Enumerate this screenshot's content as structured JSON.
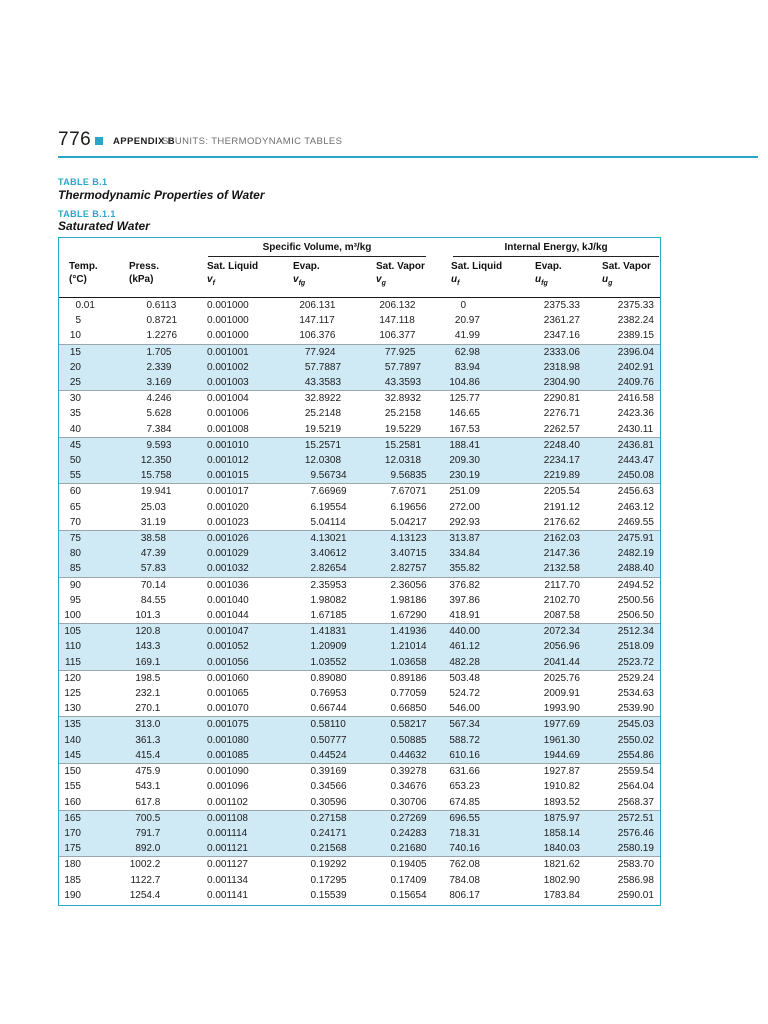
{
  "page_header": {
    "page_number": "776",
    "appendix_label": "APPENDIX B",
    "running_title": "SI UNITS: THERMODYNAMIC TABLES"
  },
  "titles": {
    "table_b1_label": "TABLE B.1",
    "table_b1_title": "Thermodynamic Properties of Water",
    "table_b11_label": "TABLE B.1.1",
    "table_b11_title": "Saturated Water"
  },
  "colors": {
    "accent": "#2aa6c9",
    "band": "#cfe9f5"
  },
  "table": {
    "groups": [
      {
        "label": "Specific Volume, m³/kg"
      },
      {
        "label": "Internal Energy, kJ/kg"
      }
    ],
    "columns": [
      {
        "key": "temp",
        "line1": "Temp.",
        "unit": "(°C)"
      },
      {
        "key": "press",
        "line1": "Press.",
        "unit": "(kPa)"
      },
      {
        "key": "vf",
        "line1": "Sat. Liquid",
        "sym": "v",
        "sub": "f"
      },
      {
        "key": "vfg",
        "line1": "Evap.",
        "sym": "v",
        "sub": "fg"
      },
      {
        "key": "vg",
        "line1": "Sat. Vapor",
        "sym": "v",
        "sub": "g"
      },
      {
        "key": "uf",
        "line1": "Sat. Liquid",
        "sym": "u",
        "sub": "f"
      },
      {
        "key": "ufg",
        "line1": "Evap.",
        "sym": "u",
        "sub": "fg"
      },
      {
        "key": "ug",
        "line1": "Sat. Vapor",
        "sym": "u",
        "sub": "g"
      }
    ],
    "rows": [
      [
        "0.01",
        "0.6113",
        "0.001000",
        "206.131",
        "206.132",
        "0",
        "2375.33",
        "2375.33"
      ],
      [
        "5",
        "0.8721",
        "0.001000",
        "147.117",
        "147.118",
        "20.97",
        "2361.27",
        "2382.24"
      ],
      [
        "10",
        "1.2276",
        "0.001000",
        "106.376",
        "106.377",
        "41.99",
        "2347.16",
        "2389.15"
      ],
      [
        "15",
        "1.705",
        "0.001001",
        "77.924",
        "77.925",
        "62.98",
        "2333.06",
        "2396.04"
      ],
      [
        "20",
        "2.339",
        "0.001002",
        "57.7887",
        "57.7897",
        "83.94",
        "2318.98",
        "2402.91"
      ],
      [
        "25",
        "3.169",
        "0.001003",
        "43.3583",
        "43.3593",
        "104.86",
        "2304.90",
        "2409.76"
      ],
      [
        "30",
        "4.246",
        "0.001004",
        "32.8922",
        "32.8932",
        "125.77",
        "2290.81",
        "2416.58"
      ],
      [
        "35",
        "5.628",
        "0.001006",
        "25.2148",
        "25.2158",
        "146.65",
        "2276.71",
        "2423.36"
      ],
      [
        "40",
        "7.384",
        "0.001008",
        "19.5219",
        "19.5229",
        "167.53",
        "2262.57",
        "2430.11"
      ],
      [
        "45",
        "9.593",
        "0.001010",
        "15.2571",
        "15.2581",
        "188.41",
        "2248.40",
        "2436.81"
      ],
      [
        "50",
        "12.350",
        "0.001012",
        "12.0308",
        "12.0318",
        "209.30",
        "2234.17",
        "2443.47"
      ],
      [
        "55",
        "15.758",
        "0.001015",
        "9.56734",
        "9.56835",
        "230.19",
        "2219.89",
        "2450.08"
      ],
      [
        "60",
        "19.941",
        "0.001017",
        "7.66969",
        "7.67071",
        "251.09",
        "2205.54",
        "2456.63"
      ],
      [
        "65",
        "25.03",
        "0.001020",
        "6.19554",
        "6.19656",
        "272.00",
        "2191.12",
        "2463.12"
      ],
      [
        "70",
        "31.19",
        "0.001023",
        "5.04114",
        "5.04217",
        "292.93",
        "2176.62",
        "2469.55"
      ],
      [
        "75",
        "38.58",
        "0.001026",
        "4.13021",
        "4.13123",
        "313.87",
        "2162.03",
        "2475.91"
      ],
      [
        "80",
        "47.39",
        "0.001029",
        "3.40612",
        "3.40715",
        "334.84",
        "2147.36",
        "2482.19"
      ],
      [
        "85",
        "57.83",
        "0.001032",
        "2.82654",
        "2.82757",
        "355.82",
        "2132.58",
        "2488.40"
      ],
      [
        "90",
        "70.14",
        "0.001036",
        "2.35953",
        "2.36056",
        "376.82",
        "2117.70",
        "2494.52"
      ],
      [
        "95",
        "84.55",
        "0.001040",
        "1.98082",
        "1.98186",
        "397.86",
        "2102.70",
        "2500.56"
      ],
      [
        "100",
        "101.3",
        "0.001044",
        "1.67185",
        "1.67290",
        "418.91",
        "2087.58",
        "2506.50"
      ],
      [
        "105",
        "120.8",
        "0.001047",
        "1.41831",
        "1.41936",
        "440.00",
        "2072.34",
        "2512.34"
      ],
      [
        "110",
        "143.3",
        "0.001052",
        "1.20909",
        "1.21014",
        "461.12",
        "2056.96",
        "2518.09"
      ],
      [
        "115",
        "169.1",
        "0.001056",
        "1.03552",
        "1.03658",
        "482.28",
        "2041.44",
        "2523.72"
      ],
      [
        "120",
        "198.5",
        "0.001060",
        "0.89080",
        "0.89186",
        "503.48",
        "2025.76",
        "2529.24"
      ],
      [
        "125",
        "232.1",
        "0.001065",
        "0.76953",
        "0.77059",
        "524.72",
        "2009.91",
        "2534.63"
      ],
      [
        "130",
        "270.1",
        "0.001070",
        "0.66744",
        "0.66850",
        "546.00",
        "1993.90",
        "2539.90"
      ],
      [
        "135",
        "313.0",
        "0.001075",
        "0.58110",
        "0.58217",
        "567.34",
        "1977.69",
        "2545.03"
      ],
      [
        "140",
        "361.3",
        "0.001080",
        "0.50777",
        "0.50885",
        "588.72",
        "1961.30",
        "2550.02"
      ],
      [
        "145",
        "415.4",
        "0.001085",
        "0.44524",
        "0.44632",
        "610.16",
        "1944.69",
        "2554.86"
      ],
      [
        "150",
        "475.9",
        "0.001090",
        "0.39169",
        "0.39278",
        "631.66",
        "1927.87",
        "2559.54"
      ],
      [
        "155",
        "543.1",
        "0.001096",
        "0.34566",
        "0.34676",
        "653.23",
        "1910.82",
        "2564.04"
      ],
      [
        "160",
        "617.8",
        "0.001102",
        "0.30596",
        "0.30706",
        "674.85",
        "1893.52",
        "2568.37"
      ],
      [
        "165",
        "700.5",
        "0.001108",
        "0.27158",
        "0.27269",
        "696.55",
        "1875.97",
        "2572.51"
      ],
      [
        "170",
        "791.7",
        "0.001114",
        "0.24171",
        "0.24283",
        "718.31",
        "1858.14",
        "2576.46"
      ],
      [
        "175",
        "892.0",
        "0.001121",
        "0.21568",
        "0.21680",
        "740.16",
        "1840.03",
        "2580.19"
      ],
      [
        "180",
        "1002.2",
        "0.001127",
        "0.19292",
        "0.19405",
        "762.08",
        "1821.62",
        "2583.70"
      ],
      [
        "185",
        "1122.7",
        "0.001134",
        "0.17295",
        "0.17409",
        "784.08",
        "1802.90",
        "2586.98"
      ],
      [
        "190",
        "1254.4",
        "0.001141",
        "0.15539",
        "0.15654",
        "806.17",
        "1783.84",
        "2590.01"
      ]
    ]
  }
}
